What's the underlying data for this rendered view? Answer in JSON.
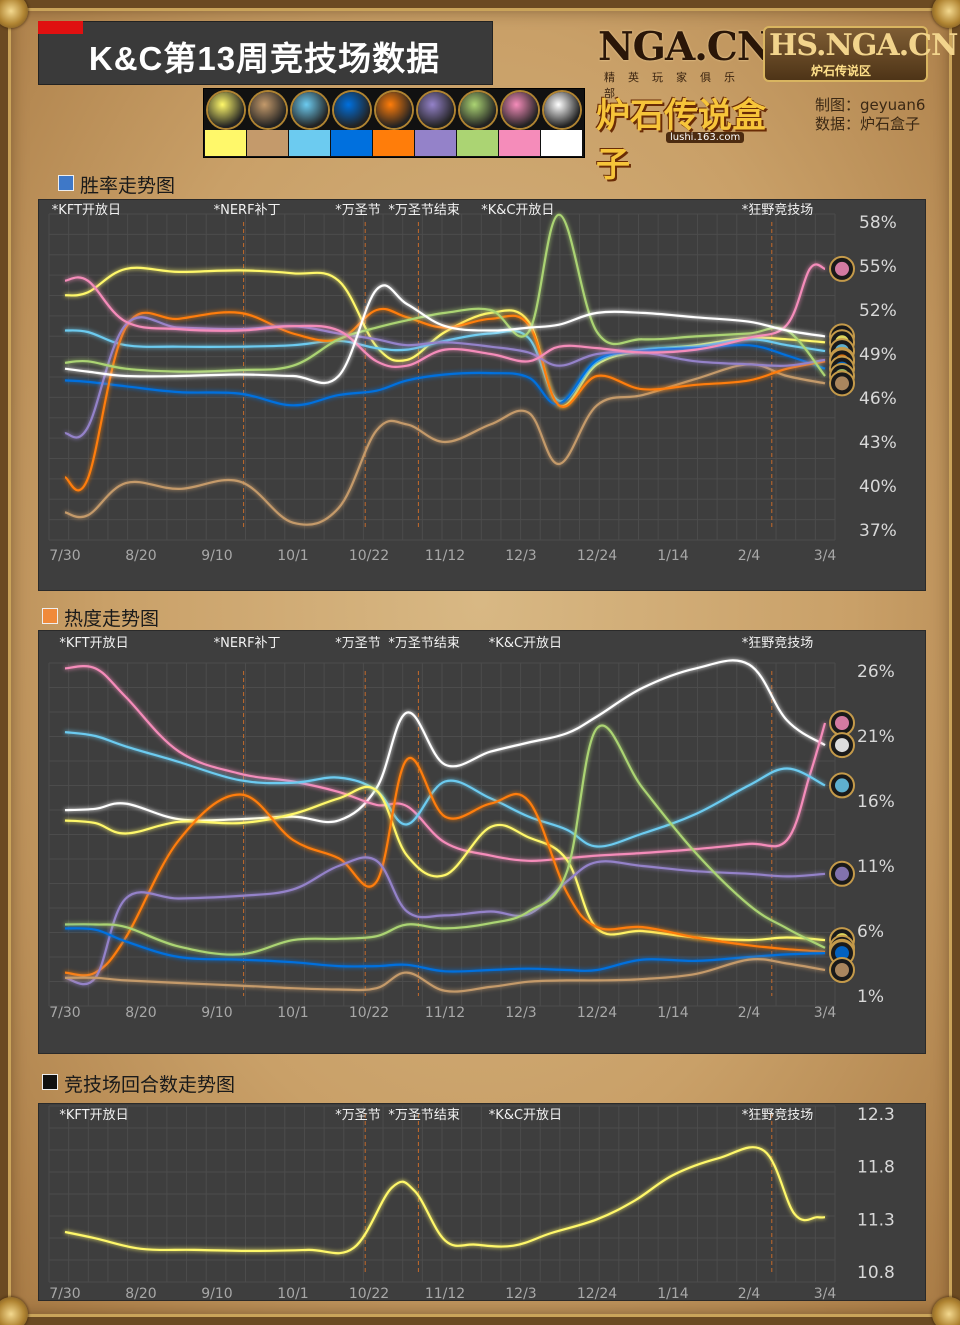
{
  "header": {
    "title": "K&C第13周竞技场数据",
    "logo_nga": "NGA.CN",
    "logo_nga_sub": "精英玩家俱乐部",
    "logo_hs": "HS.NGA.CN",
    "logo_hs_sub": "炉石传说区",
    "logo_box": "炉石传说盒子",
    "logo_box_url": "lushi.163.com",
    "credit_author": "制图：geyuan6",
    "credit_data": "数据：炉石盒子"
  },
  "classes": [
    {
      "key": "hunter",
      "icon": "hunter-icon",
      "color": "#fff86a"
    },
    {
      "key": "warrior",
      "icon": "warrior-icon",
      "color": "#c49a6b"
    },
    {
      "key": "mage",
      "icon": "mage-icon",
      "color": "#6ccbf0"
    },
    {
      "key": "shaman",
      "icon": "shaman-icon",
      "color": "#0070de"
    },
    {
      "key": "druid",
      "icon": "druid-icon",
      "color": "#ff7d0a"
    },
    {
      "key": "warlock",
      "icon": "warlock-icon",
      "color": "#9482c9"
    },
    {
      "key": "hunter2",
      "icon": "hunter-bow-icon",
      "color": "#abd473"
    },
    {
      "key": "paladin",
      "icon": "paladin-icon",
      "color": "#f58cba"
    },
    {
      "key": "priest",
      "icon": "priest-icon",
      "color": "#ffffff"
    }
  ],
  "x_ticks": [
    "7/30",
    "8/20",
    "9/10",
    "10/1",
    "10/22",
    "11/12",
    "12/3",
    "12/24",
    "1/14",
    "2/4",
    "3/4"
  ],
  "chart_data": [
    {
      "type": "line",
      "title": "胜率走势图",
      "legend_color": "#3e78c8",
      "ylim": [
        37,
        58
      ],
      "y_ticks": [
        "58%",
        "55%",
        "52%",
        "49%",
        "46%",
        "43%",
        "40%",
        "37%"
      ],
      "y_tick_values": [
        58,
        55,
        52,
        49,
        46,
        43,
        40,
        37
      ],
      "events": [
        {
          "label": "*KFT开放日",
          "x": 0.3,
          "major": true
        },
        {
          "label": "*NERF补丁",
          "x": 2.35,
          "major": false
        },
        {
          "label": "*万圣节",
          "x": 3.95,
          "major": false
        },
        {
          "label": "*万圣节结束",
          "x": 4.65,
          "major": false
        },
        {
          "label": "*K&C开放日",
          "x": 5.95,
          "major": true
        },
        {
          "label": "*狂野竞技场",
          "x": 9.3,
          "major": false
        }
      ],
      "series": [
        {
          "color": "#fff86a",
          "x": [
            0,
            0.3,
            0.8,
            1.5,
            2.3,
            3,
            3.6,
            4.1,
            4.5,
            5,
            5.6,
            6.1,
            6.5,
            7,
            7.6,
            8.3,
            9,
            9.5,
            10
          ],
          "y": [
            53,
            53.2,
            54.8,
            54.6,
            54.7,
            54.5,
            54,
            49.5,
            48.6,
            50.5,
            51.8,
            51.2,
            45.5,
            48.3,
            49.2,
            49.6,
            50.1,
            50,
            49.8
          ]
        },
        {
          "color": "#c49a6b",
          "x": [
            0,
            0.3,
            0.8,
            1.5,
            2.3,
            3,
            3.6,
            4.1,
            4.5,
            5,
            5.6,
            6.1,
            6.5,
            7,
            7.6,
            8.3,
            9,
            9.5,
            10
          ],
          "y": [
            38.2,
            38,
            40.2,
            39.8,
            40.3,
            37.5,
            38.5,
            43.8,
            44.2,
            43,
            44.2,
            45,
            41.5,
            45.5,
            46.2,
            47.3,
            48.3,
            47.5,
            47
          ]
        },
        {
          "color": "#6ccbf0",
          "x": [
            0,
            0.3,
            0.8,
            1.5,
            2.3,
            3,
            3.6,
            4.1,
            4.5,
            5,
            5.6,
            6.1,
            6.5,
            7,
            7.6,
            8.3,
            9,
            9.5,
            10
          ],
          "y": [
            50.6,
            50.5,
            49.6,
            49.5,
            49.5,
            49.6,
            49.9,
            49.4,
            49.3,
            49.9,
            50.4,
            50.1,
            45.8,
            48.5,
            49.3,
            49.5,
            50,
            49.6,
            49.2
          ]
        },
        {
          "color": "#0070de",
          "x": [
            0,
            0.3,
            0.8,
            1.5,
            2.3,
            3,
            3.6,
            4.1,
            4.5,
            5,
            5.6,
            6.1,
            6.5,
            7,
            7.6,
            8.3,
            9,
            9.5,
            10
          ],
          "y": [
            47.2,
            47.1,
            46.8,
            46.4,
            46.3,
            45.5,
            46.2,
            46.5,
            47.2,
            47.6,
            47.7,
            47.4,
            45.6,
            48.6,
            49.2,
            49.4,
            49.6,
            48.9,
            48
          ]
        },
        {
          "color": "#ff7d0a",
          "x": [
            0,
            0.3,
            0.8,
            1.5,
            2.3,
            3,
            3.6,
            4.1,
            4.5,
            5,
            5.6,
            6.1,
            6.5,
            7,
            7.6,
            8.3,
            9,
            9.5,
            10
          ],
          "y": [
            40.6,
            40.5,
            50.8,
            51.4,
            51.8,
            50.4,
            50,
            52,
            51.5,
            50.8,
            51.4,
            51,
            45.5,
            47.5,
            46.6,
            46.9,
            47.2,
            48,
            48.5
          ]
        },
        {
          "color": "#9482c9",
          "x": [
            0,
            0.3,
            0.8,
            1.5,
            2.3,
            3,
            3.6,
            4.1,
            4.5,
            5,
            5.6,
            6.1,
            6.5,
            7,
            7.6,
            8.3,
            9,
            9.5,
            10
          ],
          "y": [
            43.6,
            44,
            51,
            50.8,
            50.7,
            50.9,
            50.4,
            50,
            49.6,
            49.8,
            49.5,
            49.1,
            48.2,
            49,
            49.1,
            48.5,
            48.3,
            48.2,
            48.6
          ]
        },
        {
          "color": "#abd473",
          "x": [
            0,
            0.3,
            0.8,
            1.5,
            2.3,
            3,
            3.6,
            4.1,
            4.5,
            5,
            5.6,
            6.1,
            6.5,
            7,
            7.6,
            8.3,
            9,
            9.5,
            10
          ],
          "y": [
            48.4,
            48.5,
            48,
            47.8,
            47.9,
            48.2,
            50,
            50.8,
            51.3,
            51.8,
            52,
            50.5,
            58.5,
            50.5,
            50,
            50.2,
            50.4,
            50.6,
            47.5
          ]
        },
        {
          "color": "#f58cba",
          "x": [
            0,
            0.3,
            0.8,
            1.5,
            2.3,
            3,
            3.6,
            4.1,
            4.5,
            5,
            5.6,
            6.1,
            6.5,
            7,
            7.6,
            8.3,
            9,
            9.5,
            9.8,
            10
          ],
          "y": [
            54,
            54,
            51.2,
            50.7,
            50.6,
            50.9,
            50.6,
            48.5,
            48.2,
            49.3,
            49,
            48.5,
            49.5,
            49.4,
            49.1,
            49.3,
            50.1,
            51,
            54.8,
            54.8
          ]
        },
        {
          "color": "#ffffff",
          "x": [
            0,
            0.3,
            0.8,
            1.5,
            2.3,
            3,
            3.6,
            4.1,
            4.5,
            5,
            5.6,
            6.1,
            6.5,
            7,
            7.6,
            8.3,
            9,
            9.5,
            10
          ],
          "y": [
            48,
            47.8,
            47.5,
            47.5,
            47.6,
            47.5,
            47.5,
            53.4,
            52.4,
            50.9,
            50.6,
            50.8,
            51,
            51.8,
            51.8,
            51.5,
            51.2,
            50.6,
            50.2
          ]
        }
      ]
    },
    {
      "type": "line",
      "title": "热度走势图",
      "legend_color": "#f08a3a",
      "ylim": [
        1,
        26
      ],
      "y_ticks": [
        "26%",
        "21%",
        "16%",
        "11%",
        "6%",
        "1%"
      ],
      "y_tick_values": [
        26,
        21,
        16,
        11,
        6,
        1
      ],
      "events": [
        {
          "label": "*KFT开放日",
          "x": 0.4,
          "major": true
        },
        {
          "label": "*NERF补丁",
          "x": 2.35,
          "major": false
        },
        {
          "label": "*万圣节",
          "x": 3.95,
          "major": false
        },
        {
          "label": "*万圣节结束",
          "x": 4.65,
          "major": false
        },
        {
          "label": "*K&C开放日",
          "x": 6.05,
          "major": true
        },
        {
          "label": "*狂野竞技场",
          "x": 9.3,
          "major": false
        }
      ],
      "series": [
        {
          "color": "#ffffff",
          "x": [
            0,
            0.4,
            0.8,
            1.5,
            2.3,
            3,
            3.6,
            4.1,
            4.5,
            5,
            5.6,
            6.1,
            6.6,
            7,
            7.6,
            8.3,
            9,
            9.5,
            10
          ],
          "y": [
            15.3,
            15.4,
            15.8,
            14.6,
            14.6,
            14.8,
            14.5,
            17,
            22.8,
            18.8,
            19.8,
            20.5,
            21.2,
            22.5,
            24.7,
            26.2,
            26.5,
            22.2,
            20.3
          ]
        },
        {
          "color": "#f58cba",
          "x": [
            0,
            0.4,
            0.8,
            1.5,
            2.3,
            3,
            3.6,
            4.1,
            4.5,
            5,
            5.6,
            6.1,
            6.6,
            7,
            7.6,
            8.3,
            9,
            9.5,
            9.8,
            10
          ],
          "y": [
            26.2,
            26.2,
            24,
            19.8,
            18.1,
            17.5,
            16.7,
            15.7,
            15.6,
            12.8,
            11.8,
            11.4,
            11.6,
            11.8,
            12,
            12.3,
            12.7,
            13,
            18,
            22
          ]
        },
        {
          "color": "#6ccbf0",
          "x": [
            0,
            0.4,
            0.8,
            1.5,
            2.3,
            3,
            3.6,
            4.1,
            4.5,
            5,
            5.6,
            6.1,
            6.6,
            7,
            7.6,
            8.3,
            9,
            9.5,
            10
          ],
          "y": [
            21.3,
            21,
            20.2,
            19,
            17.6,
            17.4,
            17.8,
            16.8,
            14.2,
            17.5,
            16.2,
            14.8,
            13.8,
            12.5,
            13.5,
            15,
            17.2,
            18.5,
            17.2
          ]
        },
        {
          "color": "#fff86a",
          "x": [
            0,
            0.4,
            0.8,
            1.5,
            2.3,
            3,
            3.6,
            4.1,
            4.5,
            5,
            5.6,
            6.1,
            6.6,
            7,
            7.6,
            8.3,
            9,
            9.5,
            10
          ],
          "y": [
            14.5,
            14.3,
            13.5,
            14.4,
            14.3,
            15,
            16.2,
            16.8,
            11.8,
            10.3,
            14,
            13.2,
            11.5,
            6.2,
            6,
            5.5,
            5.3,
            5.5,
            5.3
          ]
        },
        {
          "color": "#ff7d0a",
          "x": [
            0,
            0.4,
            0.8,
            1.5,
            2.3,
            3,
            3.6,
            4.1,
            4.5,
            5,
            5.6,
            6.1,
            6.6,
            7,
            7.6,
            8.3,
            9,
            9.5,
            10
          ],
          "y": [
            2.8,
            2.8,
            5.5,
            13,
            16.5,
            13,
            11.6,
            9.8,
            19.2,
            14.8,
            15.8,
            16,
            9,
            6.3,
            6.3,
            5.5,
            4.9,
            4.6,
            4.4
          ]
        },
        {
          "color": "#9482c9",
          "x": [
            0,
            0.4,
            0.8,
            1.5,
            2.3,
            3,
            3.6,
            4.1,
            4.5,
            5,
            5.6,
            6.1,
            6.6,
            7,
            7.6,
            8.3,
            9,
            9.5,
            10
          ],
          "y": [
            2.4,
            2.4,
            8.5,
            8.5,
            8.7,
            9.2,
            11,
            11.4,
            7.5,
            7.2,
            7.5,
            7.3,
            9.8,
            11.3,
            11,
            10.6,
            10.4,
            10.2,
            10.4
          ]
        },
        {
          "color": "#abd473",
          "x": [
            0,
            0.4,
            0.8,
            1.5,
            2.3,
            3,
            3.6,
            4.1,
            4.5,
            5,
            5.6,
            6.1,
            6.6,
            7,
            7.6,
            8.3,
            9,
            9.5,
            10
          ],
          "y": [
            6.5,
            6.5,
            6.3,
            4.8,
            4.2,
            5.3,
            5.4,
            5.6,
            6.5,
            6.2,
            6.6,
            7.5,
            10.5,
            21.6,
            17,
            12,
            8,
            6.2,
            4.7
          ]
        },
        {
          "color": "#0070de",
          "x": [
            0,
            0.4,
            0.8,
            1.5,
            2.3,
            3,
            3.6,
            4.1,
            4.5,
            5,
            5.6,
            6.1,
            6.6,
            7,
            7.6,
            8.3,
            9,
            9.5,
            10
          ],
          "y": [
            6.2,
            6.1,
            5.2,
            4,
            3.8,
            3.6,
            3.3,
            3.3,
            3.4,
            2.9,
            3,
            3.1,
            3,
            3,
            3.8,
            3.7,
            4,
            4.2,
            4.3
          ]
        },
        {
          "color": "#c49a6b",
          "x": [
            0,
            0.4,
            0.8,
            1.5,
            2.3,
            3,
            3.6,
            4.1,
            4.5,
            5,
            5.6,
            6.1,
            6.6,
            7,
            7.6,
            8.3,
            9,
            9.5,
            10
          ],
          "y": [
            2.4,
            2.4,
            2.2,
            2,
            1.8,
            1.6,
            1.5,
            1.6,
            2.8,
            1.4,
            1.7,
            2.1,
            2.2,
            2.2,
            2.3,
            2.7,
            3.8,
            3.5,
            3
          ]
        }
      ]
    },
    {
      "type": "line",
      "title": "竞技场回合数走势图",
      "legend_color": "#111111",
      "ylim": [
        10.8,
        12.3
      ],
      "y_ticks": [
        "12.3",
        "11.8",
        "11.3",
        "10.8"
      ],
      "y_tick_values": [
        12.3,
        11.8,
        11.3,
        10.8
      ],
      "events": [
        {
          "label": "*KFT开放日",
          "x": 0.4,
          "major": true
        },
        {
          "label": "*万圣节",
          "x": 3.95,
          "major": false
        },
        {
          "label": "*万圣节结束",
          "x": 4.65,
          "major": false
        },
        {
          "label": "*K&C开放日",
          "x": 6.05,
          "major": true
        },
        {
          "label": "*狂野竞技场",
          "x": 9.3,
          "major": false
        }
      ],
      "series": [
        {
          "color": "#fff86a",
          "x": [
            0,
            0.4,
            1,
            1.7,
            2.5,
            3.2,
            3.8,
            4.3,
            4.6,
            5,
            5.4,
            5.9,
            6.4,
            7,
            7.5,
            8,
            8.6,
            9.2,
            9.6,
            9.9,
            10
          ],
          "y": [
            11.18,
            11.12,
            11.02,
            11.01,
            11.0,
            11.01,
            11.03,
            11.6,
            11.57,
            11.1,
            11.06,
            11.05,
            11.17,
            11.3,
            11.48,
            11.72,
            11.88,
            11.95,
            11.35,
            11.32,
            11.32
          ]
        }
      ]
    }
  ]
}
